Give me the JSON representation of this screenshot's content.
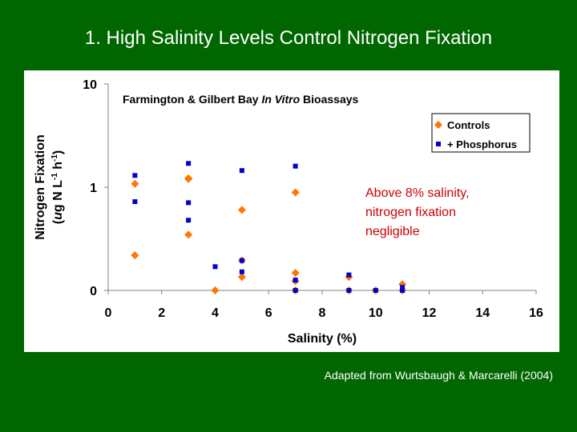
{
  "slide": {
    "title": "1.  High Salinity Levels Control Nitrogen Fixation",
    "credit": "Adapted from Wurtsbaugh & Marcarelli (2004)",
    "background_color": "#006600"
  },
  "chart_data": {
    "type": "scatter",
    "title_pre": "Farmington & Gilbert Bay ",
    "title_italic": "In Vitro",
    "title_post": "  Bioassays",
    "xlabel": "Salinity (%)",
    "ylabel_line1": "Nitrogen Fixation",
    "ylabel_line2": "(ug N L-1 h-1)",
    "xlim": [
      0,
      16
    ],
    "x_ticks": [
      "0",
      "2",
      "4",
      "6",
      "8",
      "10",
      "12",
      "14",
      "16"
    ],
    "y_scale": "log",
    "y_ticks": [
      "0",
      "1",
      "10"
    ],
    "grid": false,
    "legend_position": "top-right",
    "annotation": [
      "Above 8% salinity,",
      "nitrogen fixation",
      "negligible"
    ],
    "annotation_color": "#cc0000",
    "series": [
      {
        "name": "Controls",
        "marker": "diamond",
        "color": "#ff7700",
        "points": [
          [
            1,
            1.08
          ],
          [
            1,
            0.34
          ],
          [
            3,
            1.22
          ],
          [
            3,
            1.2
          ],
          [
            3,
            0.54
          ],
          [
            4,
            0.0
          ],
          [
            5,
            0.78
          ],
          [
            5,
            0.29
          ],
          [
            5,
            0.13
          ],
          [
            7,
            0.95
          ],
          [
            7,
            0.17
          ],
          [
            7,
            0.09
          ],
          [
            7,
            0.0
          ],
          [
            9,
            0.13
          ],
          [
            9,
            0.0
          ],
          [
            10,
            0.0
          ],
          [
            11,
            0.06
          ],
          [
            11,
            0.0
          ]
        ]
      },
      {
        "name": "+ Phosphorus",
        "marker": "square",
        "color": "#0000cc",
        "points": [
          [
            1,
            1.3
          ],
          [
            1,
            0.86
          ],
          [
            3,
            1.7
          ],
          [
            3,
            0.85
          ],
          [
            3,
            0.68
          ],
          [
            4,
            0.23
          ],
          [
            5,
            1.45
          ],
          [
            5,
            0.29
          ],
          [
            5,
            0.18
          ],
          [
            7,
            1.6
          ],
          [
            7,
            0.1
          ],
          [
            7,
            0.0
          ],
          [
            9,
            0.15
          ],
          [
            9,
            0.0
          ],
          [
            10,
            0.0
          ],
          [
            11,
            0.03
          ],
          [
            11,
            0.0
          ]
        ]
      }
    ]
  }
}
